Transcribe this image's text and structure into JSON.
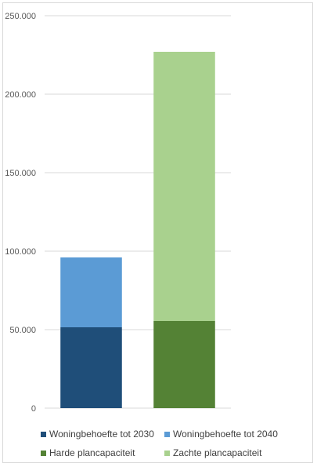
{
  "chart_data": {
    "type": "bar",
    "stacked": true,
    "categories": [
      "",
      ""
    ],
    "ylim": [
      0,
      250000
    ],
    "yticks": [
      0,
      50000,
      100000,
      150000,
      200000,
      250000
    ],
    "ytick_labels": [
      "0",
      "50.000",
      "100.000",
      "150.000",
      "200.000",
      "250.000"
    ],
    "grid": true,
    "legend_position": "bottom",
    "series": [
      {
        "name": "Woningbehoefte tot 2030",
        "color": "#1f4e79",
        "values": [
          51500,
          0
        ]
      },
      {
        "name": "Woningbehoefte tot 2040",
        "color": "#5b9bd5",
        "values": [
          44500,
          0
        ]
      },
      {
        "name": "Harde plancapaciteit",
        "color": "#548235",
        "values": [
          0,
          55500
        ]
      },
      {
        "name": "Zachte plancapaciteit",
        "color": "#a9d18e",
        "values": [
          0,
          171500
        ]
      }
    ]
  }
}
